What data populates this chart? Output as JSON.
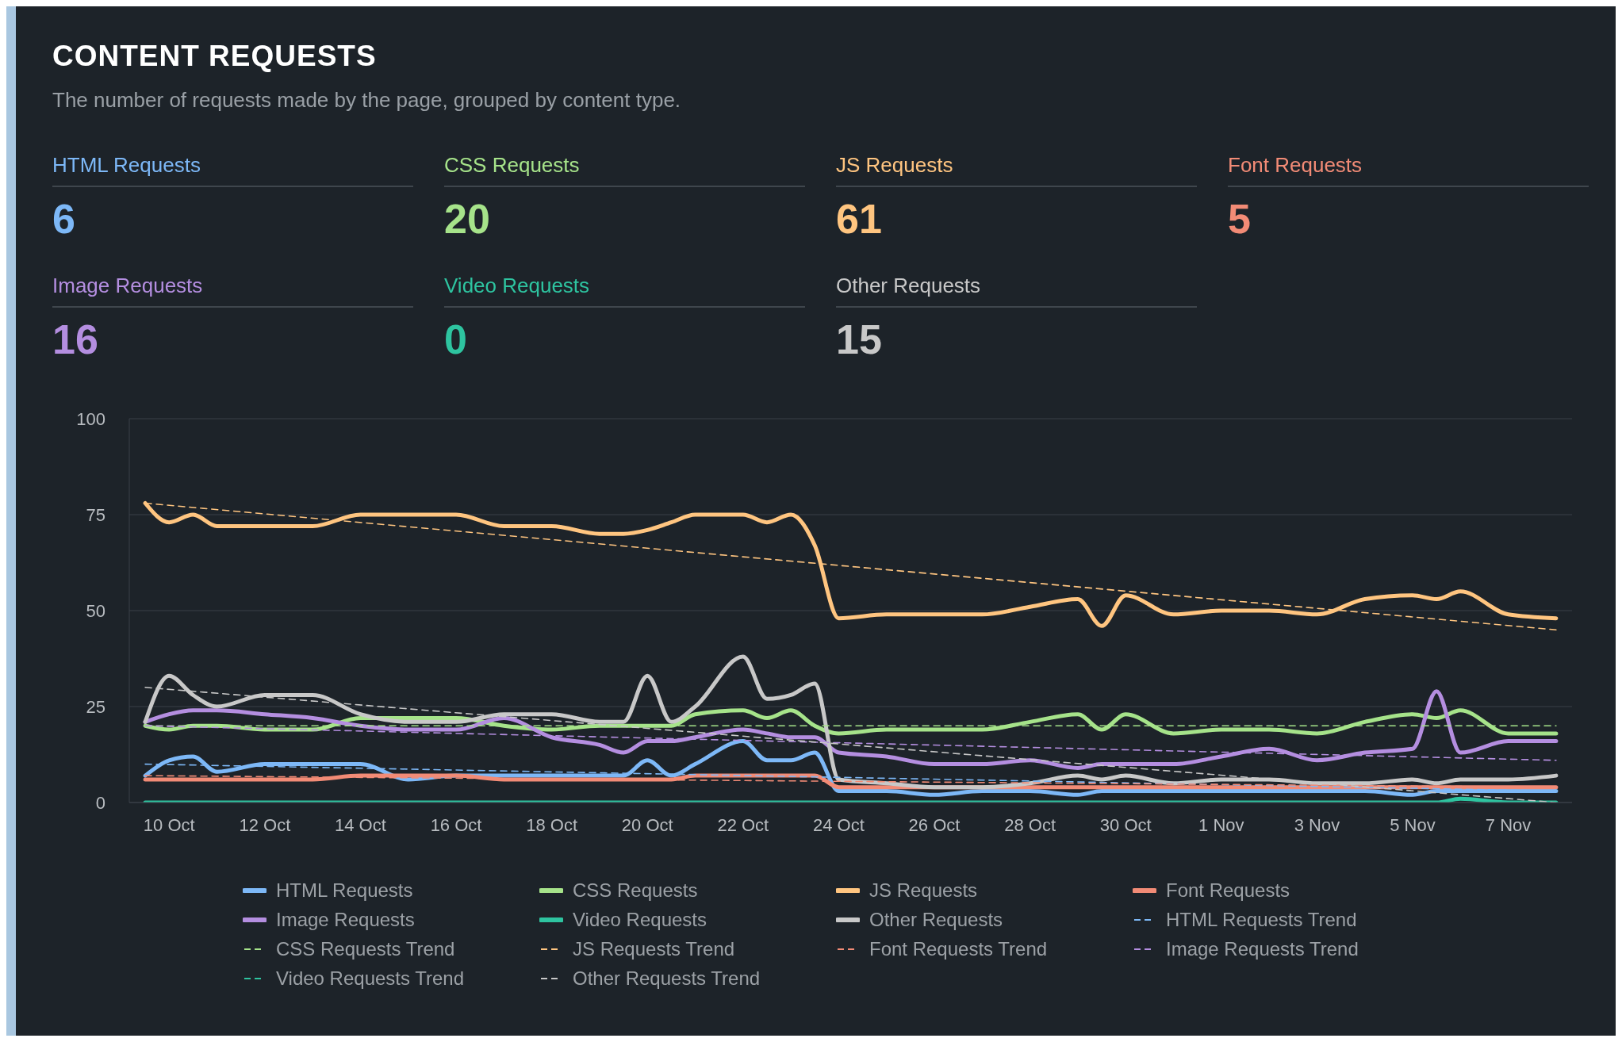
{
  "chart_data": [
    {
      "type": "other",
      "title": "CONTENT REQUESTS",
      "subtitle": "The number of requests made by the page, grouped by content type.",
      "categories": [
        "HTML Requests",
        "CSS Requests",
        "JS Requests",
        "Font Requests",
        "Image Requests",
        "Video Requests",
        "Other Requests"
      ],
      "values": [
        6,
        20,
        61,
        5,
        16,
        0,
        15
      ],
      "data_labels": true,
      "colors": [
        "#7db8f7",
        "#a6e38a",
        "#ffc580",
        "#f28b76",
        "#b48ee0",
        "#2ec4a0",
        "#c8c8c8"
      ]
    },
    {
      "type": "line",
      "x": [
        "--10-09T12:00",
        "--10-10",
        "--10-10T12:00",
        "--10-11",
        "--10-12",
        "--10-13",
        "--10-14",
        "--10-15",
        "--10-16",
        "--10-17",
        "--10-18",
        "--10-19",
        "--10-19T12:00",
        "--10-20",
        "--10-20T12:00",
        "--10-21",
        "--10-22",
        "--10-22T12:00",
        "--10-23",
        "--10-23T12:00",
        "--10-24",
        "--10-25",
        "--10-26",
        "--10-27",
        "--10-28",
        "--10-29",
        "--10-29T12:00",
        "--10-30",
        "--10-31",
        "--11-01",
        "--11-02",
        "--11-03",
        "--11-04",
        "--11-05",
        "--11-05T12:00",
        "--11-06",
        "--11-07",
        "--11-08"
      ],
      "xlim": [
        "--10-09T04:00",
        "--11-08T08:00"
      ],
      "xticks": [
        {
          "value": "--10-10",
          "label": "10 Oct"
        },
        {
          "value": "--10-12",
          "label": "12 Oct"
        },
        {
          "value": "--10-14",
          "label": "14 Oct"
        },
        {
          "value": "--10-16",
          "label": "16 Oct"
        },
        {
          "value": "--10-18",
          "label": "18 Oct"
        },
        {
          "value": "--10-20",
          "label": "20 Oct"
        },
        {
          "value": "--10-22",
          "label": "22 Oct"
        },
        {
          "value": "--10-24",
          "label": "24 Oct"
        },
        {
          "value": "--10-26",
          "label": "26 Oct"
        },
        {
          "value": "--10-28",
          "label": "28 Oct"
        },
        {
          "value": "--10-30",
          "label": "30 Oct"
        },
        {
          "value": "--11-01",
          "label": "1 Nov"
        },
        {
          "value": "--11-03",
          "label": "3 Nov"
        },
        {
          "value": "--11-05",
          "label": "5 Nov"
        },
        {
          "value": "--11-07",
          "label": "7 Nov"
        }
      ],
      "ylim": [
        0,
        100
      ],
      "yticks": [
        0,
        25,
        50,
        75,
        100
      ],
      "grid": "y",
      "legend": "bottom",
      "series": [
        {
          "name": "HTML Requests",
          "color": "#7db8f7",
          "values": [
            7,
            11,
            12,
            8,
            10,
            10,
            10,
            6,
            7,
            7,
            7,
            7,
            7,
            11,
            7,
            10,
            16,
            11,
            11,
            13,
            3,
            3,
            2,
            3,
            3,
            2,
            3,
            3,
            3,
            3,
            3,
            3,
            3,
            2,
            3,
            3,
            3,
            3
          ]
        },
        {
          "name": "CSS Requests",
          "color": "#a6e38a",
          "values": [
            20,
            19,
            20,
            20,
            19,
            19,
            22,
            22,
            22,
            20,
            19,
            20,
            20,
            20,
            20,
            23,
            24,
            22,
            24,
            20,
            18,
            19,
            19,
            19,
            21,
            23,
            19,
            23,
            18,
            19,
            19,
            18,
            21,
            23,
            22,
            24,
            18,
            18
          ]
        },
        {
          "name": "JS Requests",
          "color": "#ffc580",
          "values": [
            78,
            73,
            75,
            72,
            72,
            72,
            75,
            75,
            75,
            72,
            72,
            70,
            70,
            71,
            73,
            75,
            75,
            73,
            75,
            67,
            48,
            49,
            49,
            49,
            51,
            53,
            46,
            54,
            49,
            50,
            50,
            49,
            53,
            54,
            53,
            55,
            49,
            48
          ]
        },
        {
          "name": "Font Requests",
          "color": "#f28b76",
          "values": [
            6,
            6,
            6,
            6,
            6,
            6,
            7,
            7,
            7,
            6,
            6,
            6,
            6,
            6,
            6,
            7,
            7,
            7,
            7,
            7,
            4,
            4,
            4,
            4,
            4,
            4,
            4,
            4,
            4,
            4,
            4,
            4,
            4,
            4,
            4,
            4,
            4,
            4
          ]
        },
        {
          "name": "Image Requests",
          "color": "#b48ee0",
          "values": [
            21,
            23,
            24,
            24,
            23,
            22,
            20,
            19,
            19,
            22,
            17,
            15,
            13,
            16,
            16,
            17,
            19,
            18,
            17,
            17,
            13,
            12,
            10,
            10,
            11,
            9,
            10,
            10,
            10,
            12,
            14,
            11,
            13,
            14,
            29,
            13,
            16,
            16
          ]
        },
        {
          "name": "Video Requests",
          "color": "#2ec4a0",
          "values": [
            0,
            0,
            0,
            0,
            0,
            0,
            0,
            0,
            0,
            0,
            0,
            0,
            0,
            0,
            0,
            0,
            0,
            0,
            0,
            0,
            0,
            0,
            0,
            0,
            0,
            0,
            0,
            0,
            0,
            0,
            0,
            0,
            0,
            0,
            0,
            1,
            0,
            0
          ]
        },
        {
          "name": "Other Requests",
          "color": "#c8c8c8",
          "values": [
            21,
            33,
            28,
            25,
            28,
            28,
            23,
            21,
            21,
            23,
            23,
            21,
            21,
            33,
            21,
            25,
            38,
            27,
            28,
            31,
            6,
            5,
            4,
            4,
            5,
            7,
            6,
            7,
            5,
            6,
            6,
            5,
            5,
            6,
            5,
            6,
            6,
            7
          ]
        },
        {
          "name": "HTML Requests Trend",
          "color": "#7db8f7",
          "line_style": "dashed",
          "x": [
            "--10-09T12:00",
            "--11-08"
          ],
          "values": [
            10,
            3
          ]
        },
        {
          "name": "CSS Requests Trend",
          "color": "#a6e38a",
          "line_style": "dashed",
          "x": [
            "--10-09T12:00",
            "--11-08"
          ],
          "values": [
            20,
            20
          ]
        },
        {
          "name": "JS Requests Trend",
          "color": "#ffc580",
          "line_style": "dashed",
          "x": [
            "--10-09T12:00",
            "--11-08"
          ],
          "values": [
            78,
            45
          ]
        },
        {
          "name": "Font Requests Trend",
          "color": "#f28b76",
          "line_style": "dashed",
          "x": [
            "--10-09T12:00",
            "--11-08"
          ],
          "values": [
            7,
            4
          ]
        },
        {
          "name": "Image Requests Trend",
          "color": "#b48ee0",
          "line_style": "dashed",
          "x": [
            "--10-09T12:00",
            "--11-08"
          ],
          "values": [
            20,
            11
          ]
        },
        {
          "name": "Video Requests Trend",
          "color": "#2ec4a0",
          "line_style": "dashed",
          "values": [
            null,
            null,
            null,
            null,
            null,
            null,
            null,
            null,
            null,
            null,
            null,
            null,
            null,
            null,
            null,
            null,
            null,
            null,
            null,
            null,
            null,
            null,
            null,
            null,
            null,
            null,
            null,
            null,
            null,
            null,
            null,
            null,
            null,
            null,
            null,
            null,
            null,
            null
          ]
        },
        {
          "name": "Other Requests Trend",
          "color": "#c8c8c8",
          "line_style": "dashed",
          "x": [
            "--10-09T12:00",
            "--11-08"
          ],
          "values": [
            30,
            0
          ]
        }
      ]
    }
  ]
}
